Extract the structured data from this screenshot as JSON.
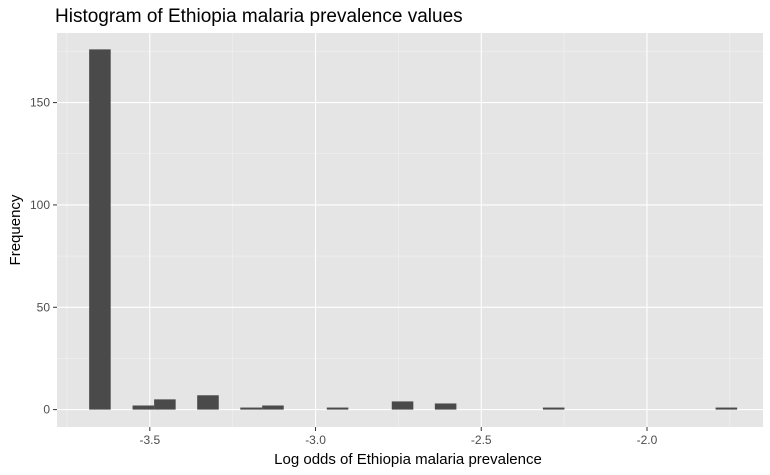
{
  "chart_data": {
    "type": "bar",
    "title": "Histogram of Ethiopia malaria prevalence values",
    "xlabel": "Log odds of Ethiopia malaria prevalence",
    "ylabel": "Frequency",
    "xlim": [
      -3.78,
      -1.65
    ],
    "ylim": [
      -8.5,
      184
    ],
    "xticks": [
      -3.5,
      -3.0,
      -2.5,
      -2.0
    ],
    "xtick_labels": [
      "-3.5",
      "-3.0",
      "-2.5",
      "-2.0"
    ],
    "yticks": [
      0,
      50,
      100,
      150
    ],
    "ytick_labels": [
      "0",
      "50",
      "100",
      "150"
    ],
    "grid": true,
    "background": "#e5e5e5",
    "bar_color": "#4a4a4a",
    "bins": [
      {
        "x0": -3.683,
        "x1": -3.618,
        "count": 176
      },
      {
        "x0": -3.552,
        "x1": -3.487,
        "count": 2
      },
      {
        "x0": -3.487,
        "x1": -3.422,
        "count": 5
      },
      {
        "x0": -3.357,
        "x1": -3.292,
        "count": 7
      },
      {
        "x0": -3.227,
        "x1": -3.161,
        "count": 1
      },
      {
        "x0": -3.161,
        "x1": -3.096,
        "count": 2
      },
      {
        "x0": -2.966,
        "x1": -2.901,
        "count": 1
      },
      {
        "x0": -2.77,
        "x1": -2.705,
        "count": 4
      },
      {
        "x0": -2.64,
        "x1": -2.575,
        "count": 3
      },
      {
        "x0": -2.314,
        "x1": -2.249,
        "count": 1
      },
      {
        "x0": -1.793,
        "x1": -1.728,
        "count": 1
      }
    ]
  }
}
